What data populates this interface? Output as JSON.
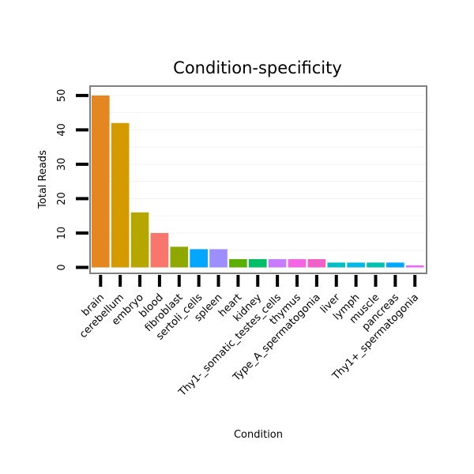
{
  "chart_data": {
    "type": "bar",
    "title": "Condition-specificity",
    "xlabel": "Condition",
    "ylabel": "Total Reads",
    "ylim": [
      -1.5,
      52.5
    ],
    "yticks": [
      0,
      10,
      20,
      30,
      40,
      50
    ],
    "grid": true,
    "legend": "none",
    "categories": [
      "brain",
      "cerebellum",
      "embryo",
      "blood",
      "fibroblast",
      "sertoli_cells",
      "spleen",
      "heart",
      "kidney",
      "Thy1-_somatic_testes_cells",
      "thymus",
      "Type_A_spermatogonia",
      "liver",
      "lymph",
      "muscle",
      "pancreas",
      "Thy1+_spermatogonia"
    ],
    "values": [
      50,
      42,
      16,
      10,
      6,
      5.3,
      5.3,
      2.4,
      2.4,
      2.4,
      2.4,
      2.4,
      1.4,
      1.4,
      1.4,
      1.4,
      0.6
    ],
    "colors": [
      "#E58720",
      "#D49A00",
      "#B5A600",
      "#F8766D",
      "#8EA800",
      "#00A6FF",
      "#9D8EFF",
      "#5BAF00",
      "#00BE67",
      "#C77CFF",
      "#F564E3",
      "#F062C8",
      "#00BFC4",
      "#00B8E5",
      "#00C0AF",
      "#00A9FF",
      "#E76BF3"
    ]
  }
}
